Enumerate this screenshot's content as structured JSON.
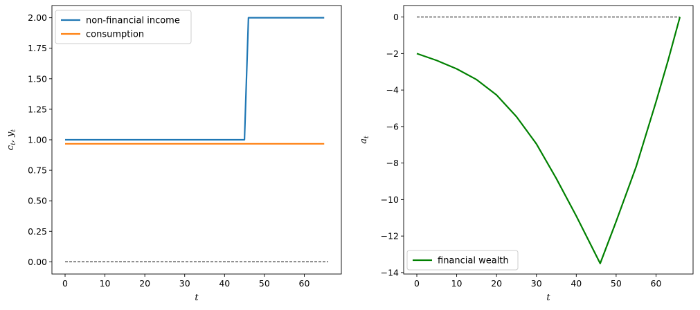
{
  "chart_data": [
    {
      "type": "line",
      "xlabel": "t",
      "ylabel": "c_t, y_t",
      "xlim": [
        -3.3,
        69.3
      ],
      "ylim": [
        -0.1,
        2.1
      ],
      "xticks": [
        0,
        10,
        20,
        30,
        40,
        50,
        60
      ],
      "xtick_labels": [
        "0",
        "10",
        "20",
        "30",
        "40",
        "50",
        "60"
      ],
      "yticks": [
        0.0,
        0.25,
        0.5,
        0.75,
        1.0,
        1.25,
        1.5,
        1.75,
        2.0
      ],
      "ytick_labels": [
        "0.00",
        "0.25",
        "0.50",
        "0.75",
        "1.00",
        "1.25",
        "1.50",
        "1.75",
        "2.00"
      ],
      "grid": false,
      "legend_position": "upper-left",
      "series": [
        {
          "name": "non-financial income",
          "color": "#1f77b4",
          "x": [
            0,
            45,
            46,
            65
          ],
          "y": [
            1.0,
            1.0,
            2.0,
            2.0
          ]
        },
        {
          "name": "consumption",
          "color": "#ff7f0e",
          "x": [
            0,
            65
          ],
          "y": [
            0.967,
            0.967
          ]
        }
      ],
      "reference_line": {
        "style": "dashed",
        "color": "#000000",
        "x": [
          0,
          66
        ],
        "y": [
          0,
          0
        ]
      }
    },
    {
      "type": "line",
      "xlabel": "t",
      "ylabel": "a_t",
      "xlim": [
        -3.3,
        69.3
      ],
      "ylim": [
        -14.08,
        0.63
      ],
      "xticks": [
        0,
        10,
        20,
        30,
        40,
        50,
        60
      ],
      "xtick_labels": [
        "0",
        "10",
        "20",
        "30",
        "40",
        "50",
        "60"
      ],
      "yticks": [
        0,
        -2,
        -4,
        -6,
        -8,
        -10,
        -12,
        -14
      ],
      "ytick_labels": [
        "0",
        "−2",
        "−4",
        "−6",
        "−8",
        "−10",
        "−12",
        "−14"
      ],
      "grid": false,
      "legend_position": "lower-left",
      "series": [
        {
          "name": "financial wealth",
          "color": "#008000",
          "x": [
            0,
            5,
            10,
            15,
            20,
            25,
            30,
            35,
            40,
            46,
            50,
            55,
            60,
            63,
            66
          ],
          "y": [
            -2.0,
            -2.38,
            -2.84,
            -3.43,
            -4.27,
            -5.46,
            -6.95,
            -8.85,
            -10.9,
            -13.5,
            -11.2,
            -8.21,
            -4.65,
            -2.4,
            0.0
          ]
        }
      ],
      "reference_line": {
        "style": "dashed",
        "color": "#000000",
        "x": [
          0,
          66
        ],
        "y": [
          0,
          0
        ]
      }
    }
  ]
}
